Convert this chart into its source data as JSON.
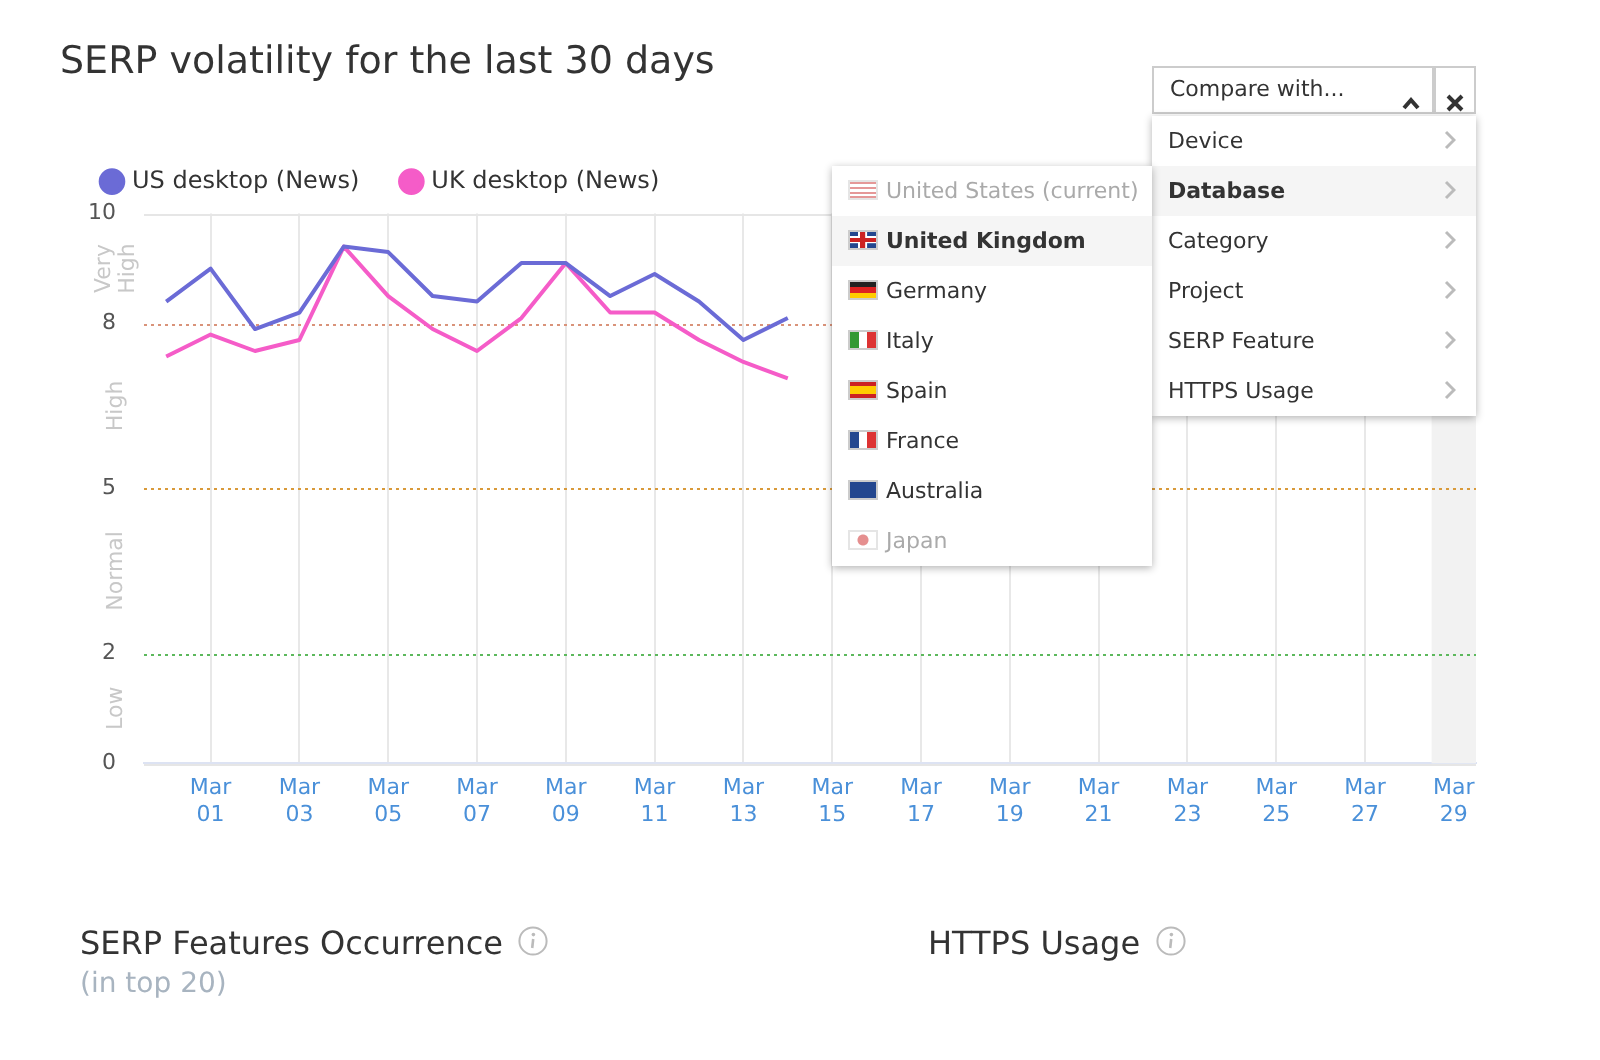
{
  "chart_data": {
    "type": "line",
    "title": "SERP volatility for the last 30 days",
    "categories": [
      null,
      "Mar 01",
      null,
      "Mar 03",
      null,
      "Mar 05",
      null,
      "Mar 07",
      null,
      "Mar 09",
      null,
      "Mar 11",
      null,
      "Mar 13",
      null,
      "Mar 15",
      null,
      "Mar 17",
      null,
      "Mar 19",
      null,
      "Mar 21",
      null,
      "Mar 23",
      null,
      "Mar 25",
      null,
      "Mar 27",
      null,
      "Mar 29"
    ],
    "series": [
      {
        "name": "US desktop (News)",
        "color": "#6b6bd6",
        "values": [
          8.4,
          9.0,
          7.9,
          8.2,
          9.4,
          9.3,
          8.5,
          8.4,
          9.1,
          9.1,
          8.5,
          8.9,
          8.4,
          7.7,
          8.1,
          null,
          null,
          null,
          null,
          null,
          null,
          null,
          null,
          null,
          null,
          null,
          null,
          null,
          null,
          null
        ]
      },
      {
        "name": "UK desktop (News)",
        "color": "#f55cc8",
        "values": [
          7.4,
          7.8,
          7.5,
          7.7,
          9.4,
          8.5,
          7.9,
          7.5,
          8.1,
          9.1,
          8.2,
          8.2,
          7.7,
          7.3,
          7.0,
          null,
          null,
          null,
          null,
          null,
          null,
          null,
          null,
          null,
          null,
          null,
          null,
          null,
          null,
          null
        ]
      }
    ],
    "ylim": [
      0,
      10
    ],
    "yticks": [
      0,
      2,
      5,
      8,
      10
    ],
    "grid": "x",
    "legend": "top left",
    "marker": "none",
    "ref_lines": [
      {
        "axis": "y",
        "value": 8,
        "color": "#d9937a",
        "line_style": "dotted"
      },
      {
        "axis": "y",
        "value": 5,
        "color": "#d99a3a",
        "line_style": "dotted"
      },
      {
        "axis": "y",
        "value": 2,
        "color": "#5cb85c",
        "line_style": "dotted"
      }
    ],
    "bands": [
      {
        "axis": "x",
        "from": "Mar 29",
        "to": "Mar 29",
        "color": "#f2f2f2"
      }
    ],
    "annotations": [
      "Very High",
      "High",
      "Normal",
      "Low",
      "Compare with...",
      "Device",
      "Database",
      "Category",
      "Project",
      "SERP Feature",
      "HTTPS Usage",
      "United States (current)",
      "United Kingdom",
      "Germany",
      "Italy",
      "Spain",
      "France",
      "Australia",
      "Japan",
      "SERP Features Occurrence",
      "(in top 20)",
      "HTTPS Usage"
    ]
  }
}
